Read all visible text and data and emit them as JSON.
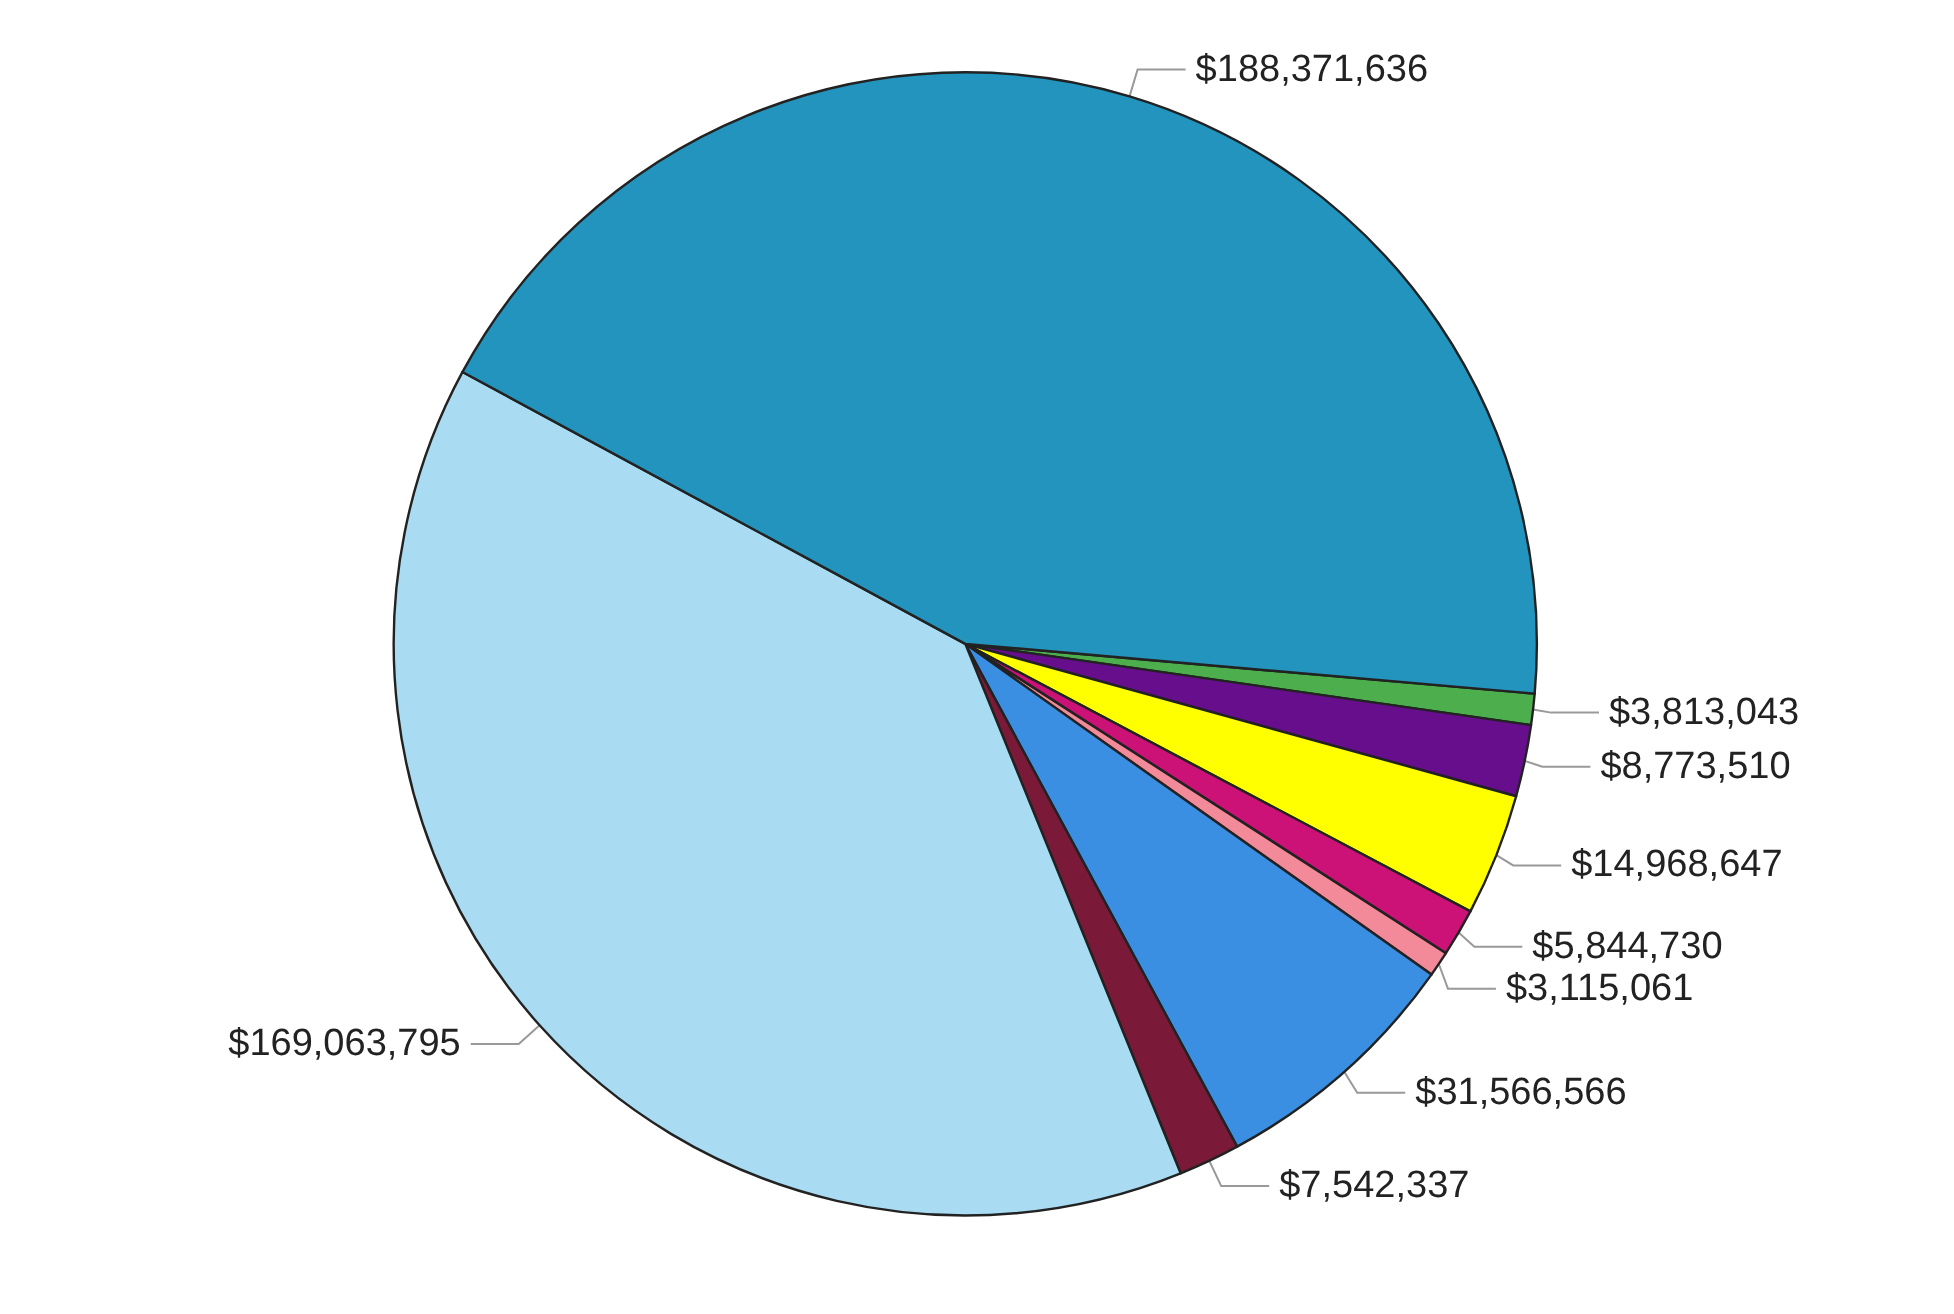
{
  "chart_data": {
    "type": "pie",
    "categories": [
      null,
      null,
      null,
      null,
      null,
      null,
      null,
      null,
      null
    ],
    "values": [
      3813043,
      8773510,
      14968647,
      5844730,
      3115061,
      31566566,
      7542337,
      169063795,
      188371636
    ],
    "value_labels": [
      "$3,813,043",
      "$8,773,510",
      "$14,968,647",
      "$5,844,730",
      "$3,115,061",
      "$31,566,566",
      "$7,542,337",
      "$169,063,795",
      "$188,371,636"
    ],
    "colors": [
      "#4cae4c",
      "#660e8c",
      "#ffff00",
      "#cc1177",
      "#f28a9a",
      "#3a8fe3",
      "#7a1a38",
      "#a9dcf2",
      "#2394bd"
    ]
  }
}
